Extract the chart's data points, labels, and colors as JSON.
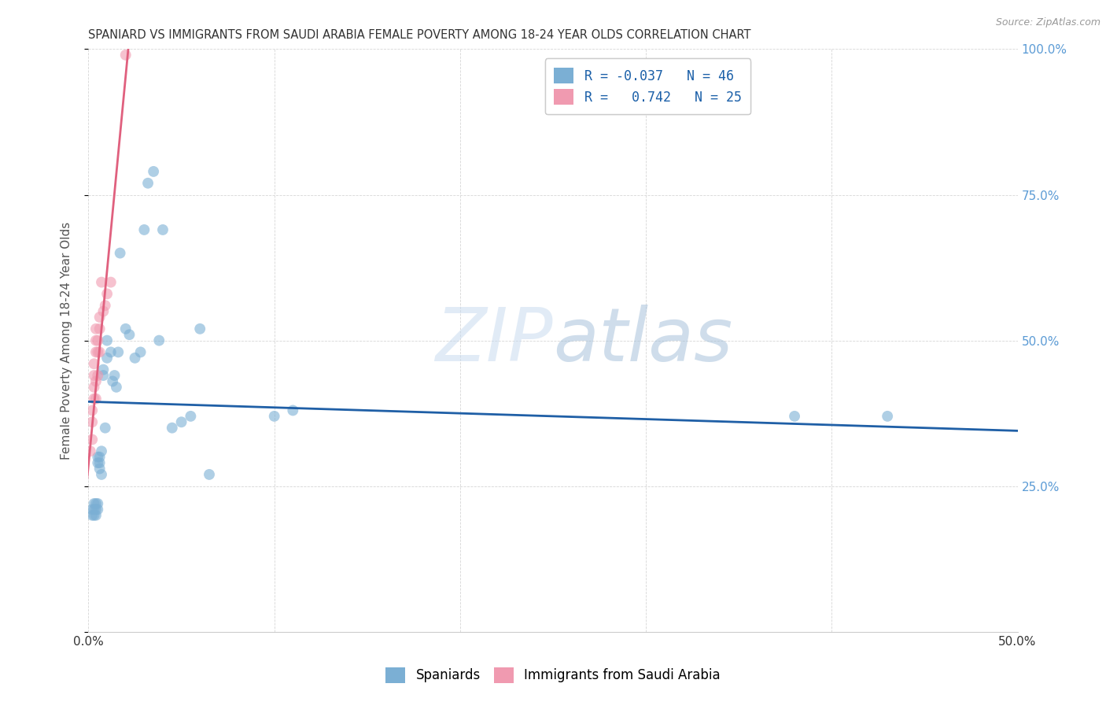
{
  "title": "SPANIARD VS IMMIGRANTS FROM SAUDI ARABIA FEMALE POVERTY AMONG 18-24 YEAR OLDS CORRELATION CHART",
  "source": "Source: ZipAtlas.com",
  "ylabel": "Female Poverty Among 18-24 Year Olds",
  "xlim": [
    0,
    0.5
  ],
  "ylim": [
    0,
    1.0
  ],
  "watermark_part1": "ZIP",
  "watermark_part2": "atlas",
  "spaniards_x": [
    0.002,
    0.002,
    0.003,
    0.003,
    0.003,
    0.004,
    0.004,
    0.004,
    0.005,
    0.005,
    0.005,
    0.005,
    0.006,
    0.006,
    0.006,
    0.007,
    0.007,
    0.008,
    0.008,
    0.009,
    0.01,
    0.01,
    0.012,
    0.013,
    0.014,
    0.015,
    0.016,
    0.017,
    0.02,
    0.022,
    0.025,
    0.028,
    0.03,
    0.032,
    0.035,
    0.038,
    0.04,
    0.045,
    0.05,
    0.055,
    0.06,
    0.065,
    0.1,
    0.11,
    0.38,
    0.43
  ],
  "spaniards_y": [
    0.2,
    0.21,
    0.22,
    0.21,
    0.2,
    0.22,
    0.21,
    0.2,
    0.3,
    0.29,
    0.22,
    0.21,
    0.3,
    0.29,
    0.28,
    0.31,
    0.27,
    0.45,
    0.44,
    0.35,
    0.5,
    0.47,
    0.48,
    0.43,
    0.44,
    0.42,
    0.48,
    0.65,
    0.52,
    0.51,
    0.47,
    0.48,
    0.69,
    0.77,
    0.79,
    0.5,
    0.69,
    0.35,
    0.36,
    0.37,
    0.52,
    0.27,
    0.37,
    0.38,
    0.37,
    0.37
  ],
  "saudi_x": [
    0.001,
    0.002,
    0.002,
    0.002,
    0.003,
    0.003,
    0.003,
    0.003,
    0.004,
    0.004,
    0.004,
    0.004,
    0.004,
    0.005,
    0.005,
    0.005,
    0.006,
    0.006,
    0.006,
    0.007,
    0.008,
    0.009,
    0.01,
    0.012,
    0.02
  ],
  "saudi_y": [
    0.31,
    0.33,
    0.36,
    0.38,
    0.4,
    0.42,
    0.44,
    0.46,
    0.4,
    0.43,
    0.48,
    0.5,
    0.52,
    0.44,
    0.48,
    0.5,
    0.48,
    0.52,
    0.54,
    0.6,
    0.55,
    0.56,
    0.58,
    0.6,
    0.99
  ],
  "blue_line_x": [
    0.0,
    0.5
  ],
  "blue_line_y": [
    0.395,
    0.345
  ],
  "pink_line_x": [
    -0.002,
    0.022
  ],
  "pink_line_y": [
    0.22,
    1.02
  ],
  "scatter_color_blue": "#7bafd4",
  "scatter_color_pink": "#f09ab0",
  "line_color_blue": "#1f5fa6",
  "line_color_pink": "#e0607e",
  "background_color": "#ffffff",
  "grid_color": "#cccccc",
  "title_color": "#333333",
  "axis_label_color": "#555555",
  "right_yaxis_color": "#5b9bd5"
}
